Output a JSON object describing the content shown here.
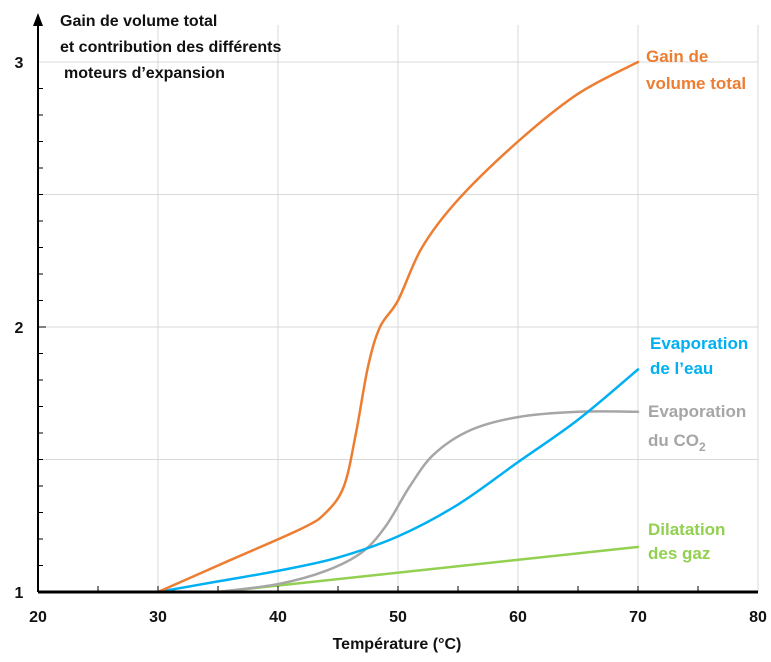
{
  "chart_data": {
    "type": "line",
    "title_lines": [
      "Gain de volume total",
      "et contribution des différents",
      "moteurs d’expansion"
    ],
    "xlabel": "Température (°C)",
    "ylabel": "",
    "xlim": [
      20,
      80
    ],
    "ylim": [
      1,
      3
    ],
    "x_ticks": [
      20,
      30,
      40,
      50,
      60,
      70,
      80
    ],
    "y_ticks": [
      1,
      2,
      3
    ],
    "grid": true,
    "series": [
      {
        "name": "Gain de volume total",
        "label_lines": [
          "Gain de",
          "volume total"
        ],
        "color": "#ED7D31",
        "points": [
          [
            30,
            1.0
          ],
          [
            36,
            1.12
          ],
          [
            42,
            1.24
          ],
          [
            44,
            1.3
          ],
          [
            45.5,
            1.4
          ],
          [
            46.5,
            1.6
          ],
          [
            47.5,
            1.85
          ],
          [
            48.5,
            2.0
          ],
          [
            50,
            2.1
          ],
          [
            52,
            2.3
          ],
          [
            55,
            2.48
          ],
          [
            60,
            2.7
          ],
          [
            65,
            2.88
          ],
          [
            70,
            3.0
          ]
        ]
      },
      {
        "name": "Evaporation de l’eau",
        "label_lines": [
          "Evaporation",
          "de l’eau"
        ],
        "color": "#00B0F0",
        "points": [
          [
            30,
            1.0
          ],
          [
            35,
            1.04
          ],
          [
            40,
            1.08
          ],
          [
            45,
            1.13
          ],
          [
            50,
            1.21
          ],
          [
            55,
            1.33
          ],
          [
            60,
            1.49
          ],
          [
            65,
            1.65
          ],
          [
            70,
            1.84
          ]
        ]
      },
      {
        "name": "Evaporation du CO2",
        "label_lines": [
          "Evaporation",
          "du CO",
          "2"
        ],
        "color": "#A6A6A6",
        "points": [
          [
            35,
            1.0
          ],
          [
            40,
            1.03
          ],
          [
            44,
            1.08
          ],
          [
            47,
            1.15
          ],
          [
            49,
            1.25
          ],
          [
            51,
            1.4
          ],
          [
            53,
            1.52
          ],
          [
            56,
            1.61
          ],
          [
            60,
            1.66
          ],
          [
            65,
            1.68
          ],
          [
            70,
            1.68
          ]
        ]
      },
      {
        "name": "Dilatation des gaz",
        "label_lines": [
          "Dilatation",
          "des gaz"
        ],
        "color": "#92D050",
        "points": [
          [
            35,
            1.0
          ],
          [
            70,
            1.17
          ]
        ]
      }
    ]
  }
}
